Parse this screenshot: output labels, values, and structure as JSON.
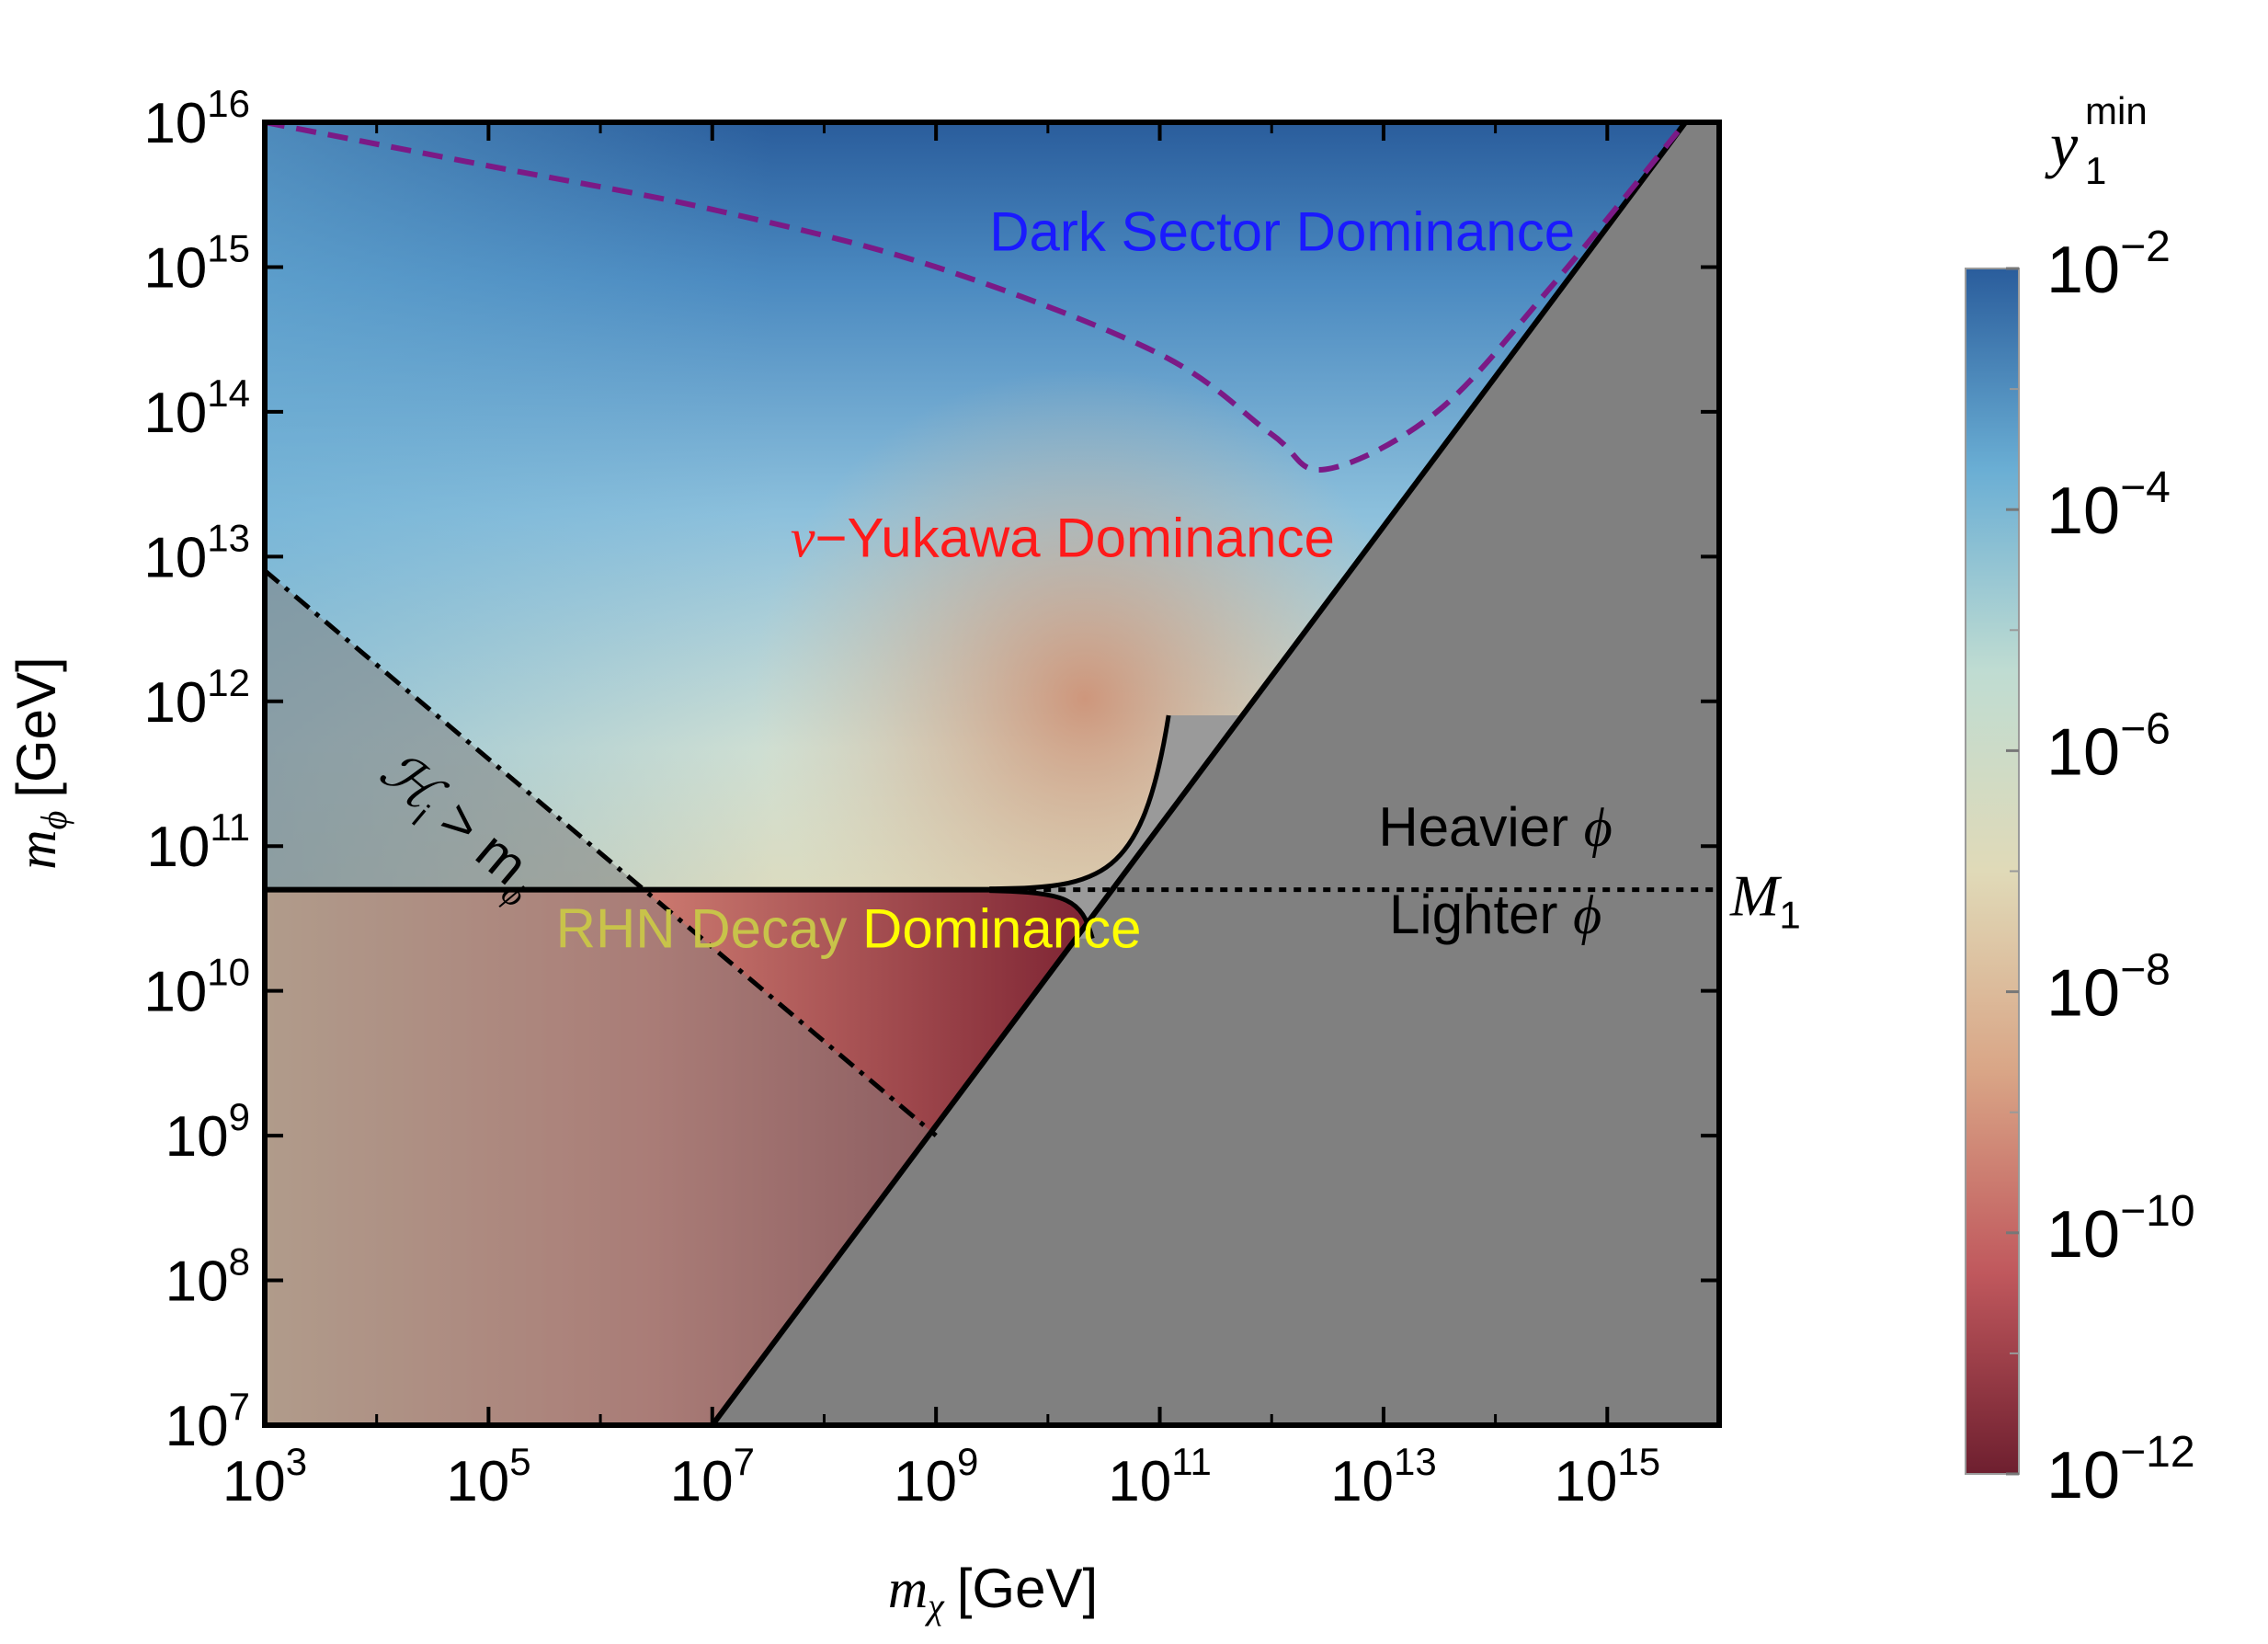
{
  "chart_data": {
    "type": "heatmap",
    "title": "",
    "xlabel": {
      "symbol": "m",
      "sub": "χ",
      "unit": "[GeV]"
    },
    "ylabel": {
      "symbol": "m",
      "sub": "ϕ",
      "unit": "[GeV]"
    },
    "x_scale": "log",
    "y_scale": "log",
    "xlim": [
      1000,
      1e+16
    ],
    "ylim": [
      10000000.0,
      1e+16
    ],
    "x_ticks": [
      {
        "exp": "3",
        "value": 1000.0
      },
      {
        "exp": "5",
        "value": 100000.0
      },
      {
        "exp": "7",
        "value": 10000000.0
      },
      {
        "exp": "9",
        "value": 1000000000.0
      },
      {
        "exp": "11",
        "value": 100000000000.0
      },
      {
        "exp": "13",
        "value": 10000000000000.0
      },
      {
        "exp": "15",
        "value": 1000000000000000.0
      }
    ],
    "y_ticks": [
      {
        "exp": "7",
        "value": 10000000.0
      },
      {
        "exp": "8",
        "value": 100000000.0
      },
      {
        "exp": "9",
        "value": 1000000000.0
      },
      {
        "exp": "10",
        "value": 10000000000.0
      },
      {
        "exp": "11",
        "value": 100000000000.0
      },
      {
        "exp": "12",
        "value": 1000000000000.0
      },
      {
        "exp": "13",
        "value": 10000000000000.0
      },
      {
        "exp": "14",
        "value": 100000000000000.0
      },
      {
        "exp": "15",
        "value": 1000000000000000.0
      },
      {
        "exp": "16",
        "value": 1e+16
      }
    ],
    "tick_base": "10",
    "grid": false,
    "colorbar": {
      "label_symbol": "y",
      "label_sub": "1",
      "label_sup": "min",
      "scale": "log",
      "range": [
        1e-12,
        0.01
      ],
      "ticks": [
        {
          "exp": "−2",
          "value": 0.01
        },
        {
          "exp": "−4",
          "value": 0.0001
        },
        {
          "exp": "−6",
          "value": 1e-06
        },
        {
          "exp": "−8",
          "value": 1e-08
        },
        {
          "exp": "−10",
          "value": 1e-10
        },
        {
          "exp": "−12",
          "value": 1e-12
        }
      ],
      "colormap": [
        "#6e1f2f",
        "#c0585d",
        "#d9a586",
        "#e0dab8",
        "#bfdcd2",
        "#6aaed4",
        "#2a5d9c"
      ]
    },
    "curves": [
      {
        "name": "kinematic-boundary",
        "style": "solid",
        "points": [
          [
            10000000.0,
            10000000.0
          ],
          [
            5000000000.0,
            10000000000.0
          ],
          [
            5000000000000000.0,
            1e+16
          ]
        ]
      },
      {
        "name": "M1-line",
        "style": "solid-then-dotted",
        "value": 50000000000.0,
        "points": [
          [
            1000.0,
            50000000000.0
          ],
          [
            1e+16,
            50000000000.0
          ]
        ]
      },
      {
        "name": "dark-sector-boundary",
        "style": "dashed",
        "color": "#7b1a86",
        "points": [
          [
            1000.0,
            1e+16
          ],
          [
            100000.0,
            5000000000000000.0
          ],
          [
            10000000.0,
            2500000000000000.0
          ],
          [
            1000000000.0,
            1000000000000000.0
          ],
          [
            100000000000.0,
            250000000000000.0
          ],
          [
            1000000000000.0,
            70000000000000.0
          ],
          [
            3000000000000.0,
            40000000000000.0
          ],
          [
            30000000000000.0,
            100000000000000.0
          ],
          [
            300000000000000.0,
            700000000000000.0
          ],
          [
            5000000000000000.0,
            1e+16
          ]
        ]
      },
      {
        "name": "hubble-bound",
        "style": "dash-dot",
        "points": [
          [
            1000.0,
            8000000000000.0
          ],
          [
            1000000000.0,
            1000000000.0
          ]
        ]
      }
    ],
    "annotations": [
      {
        "text": "Dark Sector Dominance",
        "color": "#1a1aff",
        "at": [
          3000000000.0,
          1300000000000000.0
        ]
      },
      {
        "text": "ν−Yukawa Dominance",
        "color": "#ff1a1a",
        "at": [
          50000000.0,
          10000000000000.0
        ]
      },
      {
        "text": "RHN Decay Dominance",
        "color": "#ffff00",
        "at": [
          400000.0,
          20000000000.0
        ]
      },
      {
        "text": "Heavier ϕ",
        "color": "#000000",
        "at": [
          100000000000000.0,
          100000000000.0
        ]
      },
      {
        "text": "Lighter ϕ",
        "color": "#000000",
        "at": [
          100000000000000.0,
          25000000000.0
        ]
      },
      {
        "text_main": "ℋ",
        "text_sub": "i",
        "text_rest": " > m",
        "text_sub2": "ϕ",
        "color": "#000000",
        "at": [
          10000.0,
          300000000000.0
        ],
        "rotate": -43
      },
      {
        "text_main": "M",
        "text_sub": "1",
        "color": "#000000",
        "at": [
          1e+16,
          50000000000.0
        ]
      }
    ]
  }
}
